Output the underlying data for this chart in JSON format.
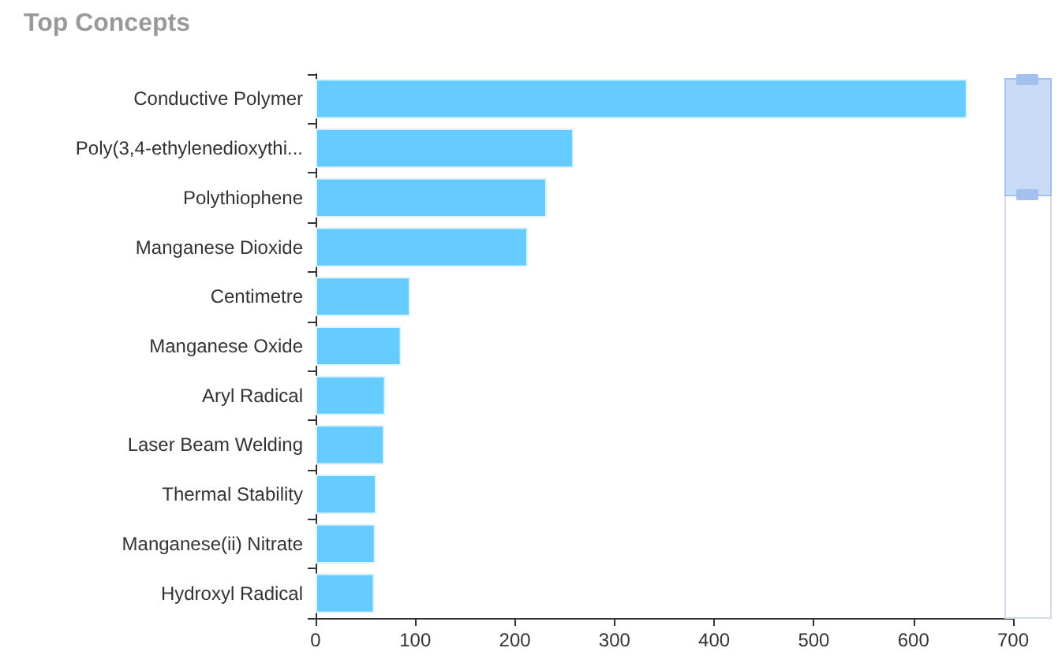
{
  "chart_data": {
    "type": "bar",
    "orientation": "horizontal",
    "title": "Top Concepts",
    "categories": [
      "Conductive Polymer",
      "Poly(3,4-ethylenedioxythi...",
      "Polythiophene",
      "Manganese Dioxide",
      "Centimetre",
      "Manganese Oxide",
      "Aryl Radical",
      "Laser Beam Welding",
      "Thermal Stability",
      "Manganese(ii) Nitrate",
      "Hydroxyl Radical"
    ],
    "values": [
      654,
      259,
      232,
      213,
      95,
      86,
      70,
      69,
      61,
      60,
      59
    ],
    "color": "#66ccff",
    "xlim": [
      0,
      700
    ],
    "xticks": [
      0,
      100,
      200,
      300,
      400,
      500,
      600,
      700
    ],
    "grid": false
  }
}
